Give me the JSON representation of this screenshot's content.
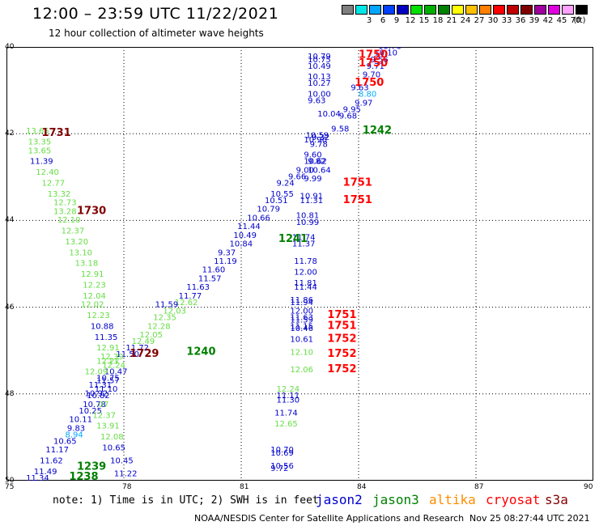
{
  "header": {
    "title": "12:00 – 23:59 UTC 11/22/2021",
    "subtitle": "12 hour collection of altimeter wave heights"
  },
  "colorbar": {
    "unit": "(ft)",
    "levels": [
      {
        "label": "",
        "color": "#7f7f7f"
      },
      {
        "label": "3",
        "color": "#00e6e6"
      },
      {
        "label": "6",
        "color": "#00a6ff"
      },
      {
        "label": "9",
        "color": "#0040ff"
      },
      {
        "label": "12",
        "color": "#0000c0"
      },
      {
        "label": "15",
        "color": "#00e000"
      },
      {
        "label": "18",
        "color": "#00b000"
      },
      {
        "label": "21",
        "color": "#008000"
      },
      {
        "label": "24",
        "color": "#ffff00"
      },
      {
        "label": "27",
        "color": "#ffc000"
      },
      {
        "label": "30",
        "color": "#ff8000"
      },
      {
        "label": "33",
        "color": "#ff0000"
      },
      {
        "label": "36",
        "color": "#c00000"
      },
      {
        "label": "39",
        "color": "#800000"
      },
      {
        "label": "42",
        "color": "#a000a0"
      },
      {
        "label": "45",
        "color": "#e000e0"
      },
      {
        "label": "70",
        "color": "#ffa0ff"
      },
      {
        "label": "",
        "color": "#000000"
      }
    ]
  },
  "map_data": {
    "lon_range": [
      75,
      90
    ],
    "lat_range": [
      40,
      50
    ],
    "lon_ticks": [
      "75",
      "78",
      "81",
      "84",
      "87",
      "90"
    ],
    "lat_ticks": [
      "40",
      "42",
      "44",
      "46",
      "48",
      "50"
    ],
    "grid": true,
    "satellite_colors": {
      "jason2": "#0000cc",
      "jason3": "#008000",
      "altika": "#ff8c00",
      "cryosat": "#ff0000",
      "s3a": "#800000",
      "light": "#66dd44",
      "cyan": "#00aaff"
    },
    "times": [
      {
        "text": "1731",
        "lon": 75.9,
        "lat": 42.05,
        "sat": "s3a"
      },
      {
        "text": "1730",
        "lon": 76.8,
        "lat": 43.85,
        "sat": "s3a"
      },
      {
        "text": "1729",
        "lon": 78.15,
        "lat": 47.15,
        "sat": "s3a"
      },
      {
        "text": "1240",
        "lon": 79.6,
        "lat": 47.1,
        "sat": "jason3"
      },
      {
        "text": "1239",
        "lon": 76.8,
        "lat": 49.75,
        "sat": "jason3"
      },
      {
        "text": "1238",
        "lon": 76.6,
        "lat": 49.98,
        "sat": "jason3"
      },
      {
        "text": "1241",
        "lon": 81.95,
        "lat": 44.5,
        "sat": "jason3"
      },
      {
        "text": "1242",
        "lon": 84.1,
        "lat": 42.0,
        "sat": "jason3"
      },
      {
        "text": "1750",
        "lon": 84.0,
        "lat": 40.25,
        "sat": "cryosat"
      },
      {
        "text": "1750",
        "lon": 84.0,
        "lat": 40.45,
        "sat": "cryosat"
      },
      {
        "text": "1750",
        "lon": 83.9,
        "lat": 40.9,
        "sat": "cryosat"
      },
      {
        "text": "1751",
        "lon": 83.6,
        "lat": 43.2,
        "sat": "cryosat"
      },
      {
        "text": "1751",
        "lon": 83.6,
        "lat": 43.6,
        "sat": "cryosat"
      },
      {
        "text": "1751",
        "lon": 83.2,
        "lat": 46.25,
        "sat": "cryosat"
      },
      {
        "text": "1751",
        "lon": 83.2,
        "lat": 46.5,
        "sat": "cryosat"
      },
      {
        "text": "1752",
        "lon": 83.2,
        "lat": 46.8,
        "sat": "cryosat"
      },
      {
        "text": "1752",
        "lon": 83.2,
        "lat": 47.15,
        "sat": "cryosat"
      },
      {
        "text": "1752",
        "lon": 83.2,
        "lat": 47.5,
        "sat": "cryosat"
      }
    ],
    "heights": [
      {
        "text": "10.76",
        "lon": 84.5,
        "lat": 40.05,
        "sat": "jason2"
      },
      {
        "text": "10.10",
        "lon": 84.4,
        "lat": 40.2,
        "sat": "jason2"
      },
      {
        "text": "10.79",
        "lon": 82.7,
        "lat": 40.28,
        "sat": "jason2"
      },
      {
        "text": "10.75",
        "lon": 82.7,
        "lat": 40.35,
        "sat": "jason2"
      },
      {
        "text": "9.56",
        "lon": 84.3,
        "lat": 40.35,
        "sat": "jason2"
      },
      {
        "text": "10.49",
        "lon": 82.7,
        "lat": 40.5,
        "sat": "jason2"
      },
      {
        "text": "9.71",
        "lon": 84.2,
        "lat": 40.5,
        "sat": "jason2"
      },
      {
        "text": "9.70",
        "lon": 84.1,
        "lat": 40.7,
        "sat": "jason2"
      },
      {
        "text": "10.13",
        "lon": 82.7,
        "lat": 40.75,
        "sat": "jason2"
      },
      {
        "text": "10.27",
        "lon": 82.7,
        "lat": 40.9,
        "sat": "jason2"
      },
      {
        "text": "9.63",
        "lon": 83.8,
        "lat": 41.0,
        "sat": "jason2"
      },
      {
        "text": "10.00",
        "lon": 82.7,
        "lat": 41.15,
        "sat": "jason2"
      },
      {
        "text": "8.80",
        "lon": 84.0,
        "lat": 41.15,
        "sat": "cyan"
      },
      {
        "text": "9.63",
        "lon": 82.7,
        "lat": 41.3,
        "sat": "jason2"
      },
      {
        "text": "9.97",
        "lon": 83.9,
        "lat": 41.35,
        "sat": "jason2"
      },
      {
        "text": "9.95",
        "lon": 83.6,
        "lat": 41.5,
        "sat": "jason2"
      },
      {
        "text": "10.04",
        "lon": 82.95,
        "lat": 41.6,
        "sat": "jason2"
      },
      {
        "text": "9.68",
        "lon": 83.5,
        "lat": 41.65,
        "sat": "jason2"
      },
      {
        "text": "9.58",
        "lon": 83.3,
        "lat": 41.95,
        "sat": "jason2"
      },
      {
        "text": "9.32",
        "lon": 82.8,
        "lat": 42.15,
        "sat": "jason2"
      },
      {
        "text": "10.59",
        "lon": 82.65,
        "lat": 42.1,
        "sat": "jason2"
      },
      {
        "text": "10.96",
        "lon": 82.6,
        "lat": 42.2,
        "sat": "jason2"
      },
      {
        "text": "9.78",
        "lon": 82.75,
        "lat": 42.3,
        "sat": "jason2"
      },
      {
        "text": "9.60",
        "lon": 82.6,
        "lat": 42.55,
        "sat": "jason2"
      },
      {
        "text": "10.62",
        "lon": 82.6,
        "lat": 42.7,
        "sat": "jason2"
      },
      {
        "text": "9.82",
        "lon": 82.7,
        "lat": 42.7,
        "sat": "jason2"
      },
      {
        "text": "9.00",
        "lon": 82.4,
        "lat": 42.9,
        "sat": "jason2"
      },
      {
        "text": "10.64",
        "lon": 82.7,
        "lat": 42.9,
        "sat": "jason2"
      },
      {
        "text": "9.66",
        "lon": 82.2,
        "lat": 43.05,
        "sat": "jason2"
      },
      {
        "text": "9.99",
        "lon": 82.6,
        "lat": 43.1,
        "sat": "jason2"
      },
      {
        "text": "9.24",
        "lon": 81.9,
        "lat": 43.2,
        "sat": "jason2"
      },
      {
        "text": "10.55",
        "lon": 81.75,
        "lat": 43.45,
        "sat": "jason2"
      },
      {
        "text": "10.91",
        "lon": 82.5,
        "lat": 43.5,
        "sat": "jason2"
      },
      {
        "text": "10.51",
        "lon": 81.6,
        "lat": 43.6,
        "sat": "jason2"
      },
      {
        "text": "11.31",
        "lon": 82.5,
        "lat": 43.6,
        "sat": "jason2"
      },
      {
        "text": "10.79",
        "lon": 81.4,
        "lat": 43.8,
        "sat": "jason2"
      },
      {
        "text": "10.66",
        "lon": 81.15,
        "lat": 44.0,
        "sat": "jason2"
      },
      {
        "text": "10.81",
        "lon": 82.4,
        "lat": 43.95,
        "sat": "jason2"
      },
      {
        "text": "10.99",
        "lon": 82.4,
        "lat": 44.1,
        "sat": "jason2"
      },
      {
        "text": "11.44",
        "lon": 80.9,
        "lat": 44.2,
        "sat": "jason2"
      },
      {
        "text": "10.49",
        "lon": 80.8,
        "lat": 44.4,
        "sat": "jason2"
      },
      {
        "text": "11.74",
        "lon": 82.3,
        "lat": 44.45,
        "sat": "jason2"
      },
      {
        "text": "10.84",
        "lon": 80.7,
        "lat": 44.6,
        "sat": "jason2"
      },
      {
        "text": "11.37",
        "lon": 82.3,
        "lat": 44.6,
        "sat": "jason2"
      },
      {
        "text": "9.37",
        "lon": 80.4,
        "lat": 44.8,
        "sat": "jason2"
      },
      {
        "text": "11.19",
        "lon": 80.3,
        "lat": 45.0,
        "sat": "jason2"
      },
      {
        "text": "11.78",
        "lon": 82.35,
        "lat": 45.0,
        "sat": "jason2"
      },
      {
        "text": "11.60",
        "lon": 80.0,
        "lat": 45.2,
        "sat": "jason2"
      },
      {
        "text": "12.00",
        "lon": 82.35,
        "lat": 45.25,
        "sat": "jason2"
      },
      {
        "text": "11.57",
        "lon": 79.9,
        "lat": 45.4,
        "sat": "jason2"
      },
      {
        "text": "11.81",
        "lon": 82.35,
        "lat": 45.5,
        "sat": "jason2"
      },
      {
        "text": "11.63",
        "lon": 79.6,
        "lat": 45.6,
        "sat": "jason2"
      },
      {
        "text": "11.44",
        "lon": 82.35,
        "lat": 45.6,
        "sat": "jason2"
      },
      {
        "text": "11.77",
        "lon": 79.4,
        "lat": 45.8,
        "sat": "jason2"
      },
      {
        "text": "11.86",
        "lon": 82.25,
        "lat": 45.9,
        "sat": "jason2"
      },
      {
        "text": "11.94",
        "lon": 82.25,
        "lat": 45.95,
        "sat": "jason2"
      },
      {
        "text": "12.62",
        "lon": 79.3,
        "lat": 45.95,
        "sat": "light"
      },
      {
        "text": "11.59",
        "lon": 78.8,
        "lat": 46.0,
        "sat": "jason2"
      },
      {
        "text": "12.03",
        "lon": 79.0,
        "lat": 46.15,
        "sat": "light"
      },
      {
        "text": "12.00",
        "lon": 82.25,
        "lat": 46.15,
        "sat": "jason2"
      },
      {
        "text": "12.35",
        "lon": 78.75,
        "lat": 46.3,
        "sat": "light"
      },
      {
        "text": "11.63",
        "lon": 82.25,
        "lat": 46.3,
        "sat": "jason2"
      },
      {
        "text": "11.59",
        "lon": 82.25,
        "lat": 46.35,
        "sat": "jason2"
      },
      {
        "text": "12.28",
        "lon": 78.6,
        "lat": 46.5,
        "sat": "light"
      },
      {
        "text": "11.15",
        "lon": 82.25,
        "lat": 46.5,
        "sat": "jason2"
      },
      {
        "text": "10.46",
        "lon": 82.25,
        "lat": 46.55,
        "sat": "jason2"
      },
      {
        "text": "12.05",
        "lon": 78.4,
        "lat": 46.7,
        "sat": "light"
      },
      {
        "text": "10.61",
        "lon": 82.25,
        "lat": 46.8,
        "sat": "jason2"
      },
      {
        "text": "12.49",
        "lon": 78.2,
        "lat": 46.85,
        "sat": "light"
      },
      {
        "text": "11.72",
        "lon": 78.05,
        "lat": 47.0,
        "sat": "jason2"
      },
      {
        "text": "12.10",
        "lon": 82.25,
        "lat": 47.1,
        "sat": "light"
      },
      {
        "text": "11.50",
        "lon": 77.8,
        "lat": 47.15,
        "sat": "jason2"
      },
      {
        "text": "11",
        "lon": 77.6,
        "lat": 47.3,
        "sat": "light"
      },
      {
        "text": "12.24",
        "lon": 77.45,
        "lat": 47.4,
        "sat": "light"
      },
      {
        "text": "12.06",
        "lon": 82.25,
        "lat": 47.5,
        "sat": "light"
      },
      {
        "text": "10.47",
        "lon": 77.5,
        "lat": 47.55,
        "sat": "jason2"
      },
      {
        "text": "11.57",
        "lon": 77.3,
        "lat": 47.75,
        "sat": "jason2"
      },
      {
        "text": "11.31",
        "lon": 77.1,
        "lat": 47.85,
        "sat": "jason2"
      },
      {
        "text": "11.10",
        "lon": 77.25,
        "lat": 47.95,
        "sat": "jason2"
      },
      {
        "text": "10.92",
        "lon": 77.0,
        "lat": 48.05,
        "sat": "jason2"
      },
      {
        "text": "10.82",
        "lon": 77.05,
        "lat": 48.1,
        "sat": "jason2"
      },
      {
        "text": "10.78",
        "lon": 76.95,
        "lat": 48.3,
        "sat": "jason2"
      },
      {
        "text": "07",
        "lon": 77.35,
        "lat": 48.3,
        "sat": "light"
      },
      {
        "text": "10.25",
        "lon": 76.85,
        "lat": 48.45,
        "sat": "jason2"
      },
      {
        "text": "12.37",
        "lon": 77.2,
        "lat": 48.55,
        "sat": "light"
      },
      {
        "text": "10.11",
        "lon": 76.6,
        "lat": 48.65,
        "sat": "jason2"
      },
      {
        "text": "13.91",
        "lon": 77.3,
        "lat": 48.8,
        "sat": "light"
      },
      {
        "text": "9.83",
        "lon": 76.55,
        "lat": 48.85,
        "sat": "jason2"
      },
      {
        "text": "8.94",
        "lon": 76.5,
        "lat": 49.0,
        "sat": "cyan"
      },
      {
        "text": "12.08",
        "lon": 77.4,
        "lat": 49.05,
        "sat": "light"
      },
      {
        "text": "10.65",
        "lon": 76.2,
        "lat": 49.15,
        "sat": "jason2"
      },
      {
        "text": "10.65",
        "lon": 77.45,
        "lat": 49.3,
        "sat": "jason2"
      },
      {
        "text": "11.17",
        "lon": 76.0,
        "lat": 49.35,
        "sat": "jason2"
      },
      {
        "text": "10.45",
        "lon": 77.65,
        "lat": 49.6,
        "sat": "jason2"
      },
      {
        "text": "11.62",
        "lon": 75.85,
        "lat": 49.6,
        "sat": "jason2"
      },
      {
        "text": "11.49",
        "lon": 75.7,
        "lat": 49.85,
        "sat": "jason2"
      },
      {
        "text": "11.22",
        "lon": 77.75,
        "lat": 49.9,
        "sat": "jason2"
      },
      {
        "text": "11.34",
        "lon": 75.5,
        "lat": 50.0,
        "sat": "jason2"
      },
      {
        "text": "12.24",
        "lon": 81.9,
        "lat": 47.95,
        "sat": "light"
      },
      {
        "text": "11.11",
        "lon": 81.9,
        "lat": 48.1,
        "sat": "jason2"
      },
      {
        "text": "11.30",
        "lon": 81.9,
        "lat": 48.2,
        "sat": "jason2"
      },
      {
        "text": "11.74",
        "lon": 81.85,
        "lat": 48.5,
        "sat": "jason2"
      },
      {
        "text": "12.65",
        "lon": 81.85,
        "lat": 48.75,
        "sat": "light"
      },
      {
        "text": "10.70",
        "lon": 81.75,
        "lat": 49.35,
        "sat": "jason2"
      },
      {
        "text": "10.69",
        "lon": 81.75,
        "lat": 49.42,
        "sat": "jason2"
      },
      {
        "text": "10.56",
        "lon": 81.75,
        "lat": 49.72,
        "sat": "jason2"
      },
      {
        "text": "9.72",
        "lon": 81.75,
        "lat": 49.78,
        "sat": "jason2"
      },
      {
        "text": "13.65",
        "lon": 75.5,
        "lat": 42.0,
        "sat": "light"
      },
      {
        "text": "13.35",
        "lon": 75.55,
        "lat": 42.25,
        "sat": "light"
      },
      {
        "text": "13.65",
        "lon": 75.55,
        "lat": 42.45,
        "sat": "light"
      },
      {
        "text": "11.39",
        "lon": 75.6,
        "lat": 42.7,
        "sat": "jason2"
      },
      {
        "text": "12.40",
        "lon": 75.75,
        "lat": 42.95,
        "sat": "light"
      },
      {
        "text": "12.77",
        "lon": 75.9,
        "lat": 43.2,
        "sat": "light"
      },
      {
        "text": "13.32",
        "lon": 76.05,
        "lat": 43.45,
        "sat": "light"
      },
      {
        "text": "12.73",
        "lon": 76.2,
        "lat": 43.65,
        "sat": "light"
      },
      {
        "text": "13.28",
        "lon": 76.2,
        "lat": 43.85,
        "sat": "light"
      },
      {
        "text": "12.10",
        "lon": 76.3,
        "lat": 44.05,
        "sat": "light"
      },
      {
        "text": "12.37",
        "lon": 76.4,
        "lat": 44.3,
        "sat": "light"
      },
      {
        "text": "13.20",
        "lon": 76.5,
        "lat": 44.55,
        "sat": "light"
      },
      {
        "text": "13.10",
        "lon": 76.6,
        "lat": 44.8,
        "sat": "light"
      },
      {
        "text": "13.18",
        "lon": 76.75,
        "lat": 45.05,
        "sat": "light"
      },
      {
        "text": "12.91",
        "lon": 76.9,
        "lat": 45.3,
        "sat": "light"
      },
      {
        "text": "12.23",
        "lon": 76.95,
        "lat": 45.55,
        "sat": "light"
      },
      {
        "text": "12.04",
        "lon": 76.95,
        "lat": 45.8,
        "sat": "light"
      },
      {
        "text": "12.02",
        "lon": 76.9,
        "lat": 46.0,
        "sat": "light"
      },
      {
        "text": "12.23",
        "lon": 77.05,
        "lat": 46.25,
        "sat": "light"
      },
      {
        "text": "10.88",
        "lon": 77.15,
        "lat": 46.5,
        "sat": "jason2"
      },
      {
        "text": "11.35",
        "lon": 77.25,
        "lat": 46.75,
        "sat": "jason2"
      },
      {
        "text": "12.91",
        "lon": 77.3,
        "lat": 47.0,
        "sat": "light"
      },
      {
        "text": "12.39",
        "lon": 77.4,
        "lat": 47.2,
        "sat": "light"
      },
      {
        "text": "12.27",
        "lon": 77.3,
        "lat": 47.3,
        "sat": "light"
      },
      {
        "text": "12.09",
        "lon": 77.0,
        "lat": 47.55,
        "sat": "light"
      },
      {
        "text": "10.75",
        "lon": 77.3,
        "lat": 47.7,
        "sat": "jason2"
      }
    ]
  },
  "footer": {
    "note": "note: 1) Time is in UTC; 2) SWH is in feet",
    "satellites": [
      {
        "label": "jason2",
        "color": "#0000cc"
      },
      {
        "label": "jason3",
        "color": "#008000"
      },
      {
        "label": "altika",
        "color": "#ff8c00"
      },
      {
        "label": "cryosat",
        "color": "#ff0000"
      },
      {
        "label": "s3a",
        "color": "#800000"
      }
    ],
    "credit": "NOAA/NESDIS Center for Satellite Applications and Research",
    "timestamp": "Nov 25 08:27:44 UTC 2021"
  }
}
